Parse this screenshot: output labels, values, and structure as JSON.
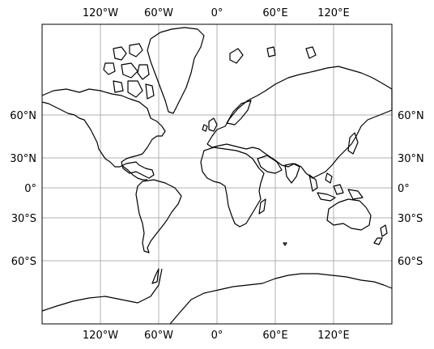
{
  "map": {
    "projection": "Mercator",
    "grid": true,
    "colors": {
      "coastline": "#000000",
      "gridline": "#b0b0b0",
      "background": "#ffffff"
    },
    "lon_ticks": [
      {
        "value": -120,
        "label": "120°W"
      },
      {
        "value": -60,
        "label": "60°W"
      },
      {
        "value": 0,
        "label": "0°"
      },
      {
        "value": 60,
        "label": "60°E"
      },
      {
        "value": 120,
        "label": "120°E"
      }
    ],
    "lat_ticks": [
      {
        "value": 60,
        "label": "60°N"
      },
      {
        "value": 30,
        "label": "30°N"
      },
      {
        "value": 0,
        "label": "0°"
      },
      {
        "value": -30,
        "label": "30°S"
      },
      {
        "value": -60,
        "label": "60°S"
      }
    ]
  }
}
